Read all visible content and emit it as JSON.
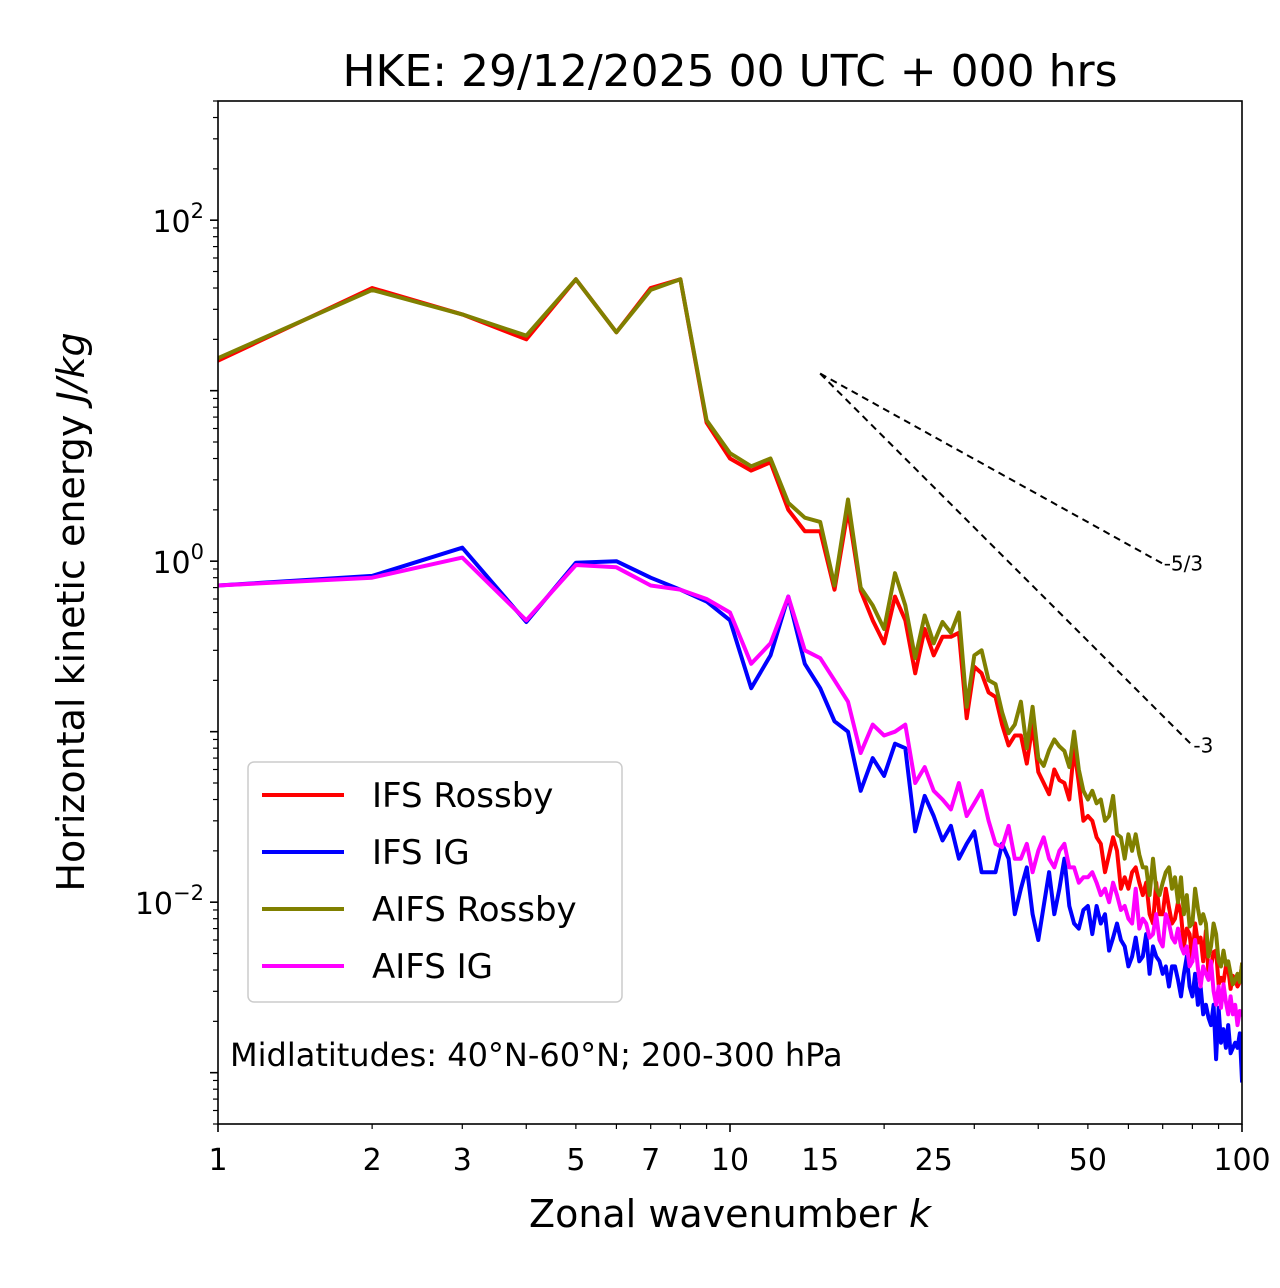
{
  "chart_data": {
    "type": "line",
    "title": "HKE: 29/12/2025 00 UTC + 000 hrs",
    "xlabel_text": "Zonal wavenumber ",
    "xlabel_italic": "k",
    "ylabel_text": "Horizontal kinetic energy ",
    "ylabel_italic": "J/kg",
    "xscale": "log",
    "yscale": "log",
    "xlim": [
      1,
      100
    ],
    "ylim": [
      0.0005,
      500
    ],
    "xticks": [
      {
        "value": 1,
        "label": "1"
      },
      {
        "value": 2,
        "label": "2"
      },
      {
        "value": 3,
        "label": "3"
      },
      {
        "value": 5,
        "label": "5"
      },
      {
        "value": 7,
        "label": "7"
      },
      {
        "value": 10,
        "label": "10"
      },
      {
        "value": 15,
        "label": "15"
      },
      {
        "value": 25,
        "label": "25"
      },
      {
        "value": 50,
        "label": "50"
      },
      {
        "value": 100,
        "label": "100"
      }
    ],
    "yticks": [
      {
        "value": 100,
        "base": "10",
        "exp": "2"
      },
      {
        "value": 1,
        "base": "10",
        "exp": "0"
      },
      {
        "value": 0.01,
        "base": "10",
        "exp": "−2"
      }
    ],
    "annotation": "Midlatitudes: 40°N-60°N; 200-300 hPa",
    "legend_position": "lower-left",
    "reference_slopes": [
      {
        "label": "-5/3",
        "slope": -1.6667,
        "x_start": 15,
        "x_end": 70,
        "y_start": 12.6
      },
      {
        "label": "-3",
        "slope": -3,
        "x_start": 15,
        "x_end": 80,
        "y_start": 12.6
      }
    ],
    "series": [
      {
        "name": "IFS Rossby",
        "color": "#ff0000",
        "x": [
          1,
          2,
          3,
          4,
          5,
          6,
          7,
          8,
          9,
          10,
          11,
          12,
          13,
          14,
          15,
          16,
          17,
          18,
          19,
          20,
          21,
          22,
          23,
          24,
          25,
          26,
          27,
          28,
          29,
          30,
          31,
          32,
          33,
          34,
          35,
          36,
          37,
          38,
          39,
          40,
          41,
          42,
          43,
          44,
          45,
          46,
          47,
          48,
          49,
          50,
          51,
          52,
          53,
          54,
          55,
          56,
          57,
          58,
          59,
          60,
          61,
          62,
          63,
          64,
          65,
          66,
          67,
          68,
          69,
          70,
          71,
          72,
          73,
          74,
          75,
          76,
          77,
          78,
          79,
          80,
          81,
          82,
          83,
          84,
          85,
          86,
          87,
          88,
          89,
          90,
          91,
          92,
          93,
          94,
          95,
          96,
          97,
          98,
          99,
          100
        ],
        "y": [
          15,
          40,
          28,
          20,
          45,
          22,
          40,
          45,
          6.5,
          4.0,
          3.4,
          3.8,
          2.0,
          1.5,
          1.5,
          0.68,
          2.0,
          0.67,
          0.45,
          0.33,
          0.62,
          0.45,
          0.22,
          0.4,
          0.28,
          0.36,
          0.36,
          0.38,
          0.12,
          0.24,
          0.22,
          0.17,
          0.16,
          0.11,
          0.083,
          0.095,
          0.095,
          0.065,
          0.11,
          0.058,
          0.05,
          0.043,
          0.06,
          0.052,
          0.05,
          0.04,
          0.08,
          0.05,
          0.03,
          0.032,
          0.03,
          0.024,
          0.022,
          0.015,
          0.019,
          0.024,
          0.02,
          0.012,
          0.014,
          0.012,
          0.015,
          0.016,
          0.013,
          0.011,
          0.013,
          0.0085,
          0.0075,
          0.013,
          0.0085,
          0.0085,
          0.012,
          0.0093,
          0.0075,
          0.008,
          0.01,
          0.0085,
          0.0055,
          0.007,
          0.0065,
          0.0045,
          0.0075,
          0.0058,
          0.0062,
          0.0045,
          0.0068,
          0.0038,
          0.0042,
          0.0051,
          0.0052,
          0.0033,
          0.0036,
          0.0034,
          0.0042,
          0.0041,
          0.0031,
          0.0037,
          0.0035,
          0.0032,
          0.0034,
          0.0043
        ]
      },
      {
        "name": "IFS IG",
        "color": "#0000ff",
        "x": [
          1,
          2,
          3,
          4,
          5,
          6,
          7,
          8,
          9,
          10,
          11,
          12,
          13,
          14,
          15,
          16,
          17,
          18,
          19,
          20,
          21,
          22,
          23,
          24,
          25,
          26,
          27,
          28,
          29,
          30,
          31,
          32,
          33,
          34,
          35,
          36,
          37,
          38,
          39,
          40,
          41,
          42,
          43,
          44,
          45,
          46,
          47,
          48,
          49,
          50,
          51,
          52,
          53,
          54,
          55,
          56,
          57,
          58,
          59,
          60,
          61,
          62,
          63,
          64,
          65,
          66,
          67,
          68,
          69,
          70,
          71,
          72,
          73,
          74,
          75,
          76,
          77,
          78,
          79,
          80,
          81,
          82,
          83,
          84,
          85,
          86,
          87,
          88,
          89,
          90,
          91,
          92,
          93,
          94,
          95,
          96,
          97,
          98,
          99,
          100
        ],
        "y": [
          0.72,
          0.82,
          1.2,
          0.44,
          0.98,
          1.0,
          0.8,
          0.68,
          0.58,
          0.45,
          0.18,
          0.28,
          0.62,
          0.25,
          0.18,
          0.115,
          0.1,
          0.045,
          0.07,
          0.055,
          0.085,
          0.08,
          0.026,
          0.042,
          0.032,
          0.023,
          0.028,
          0.018,
          0.022,
          0.026,
          0.015,
          0.015,
          0.015,
          0.022,
          0.018,
          0.0085,
          0.012,
          0.016,
          0.0085,
          0.006,
          0.0095,
          0.015,
          0.0085,
          0.012,
          0.018,
          0.0095,
          0.0075,
          0.007,
          0.009,
          0.0095,
          0.0065,
          0.0095,
          0.0075,
          0.0085,
          0.0052,
          0.0062,
          0.0075,
          0.006,
          0.0055,
          0.0042,
          0.0048,
          0.0062,
          0.0045,
          0.0048,
          0.0065,
          0.0038,
          0.0055,
          0.0048,
          0.0045,
          0.0038,
          0.0042,
          0.0032,
          0.0042,
          0.0042,
          0.0035,
          0.0028,
          0.0038,
          0.0048,
          0.0032,
          0.0028,
          0.0038,
          0.0025,
          0.0032,
          0.0022,
          0.0025,
          0.0021,
          0.0019,
          0.0025,
          0.0012,
          0.0024,
          0.0015,
          0.0018,
          0.0014,
          0.0019,
          0.0013,
          0.0014,
          0.0015,
          0.0014,
          0.0017,
          0.0009
        ]
      },
      {
        "name": "AIFS Rossby",
        "color": "#808000",
        "x": [
          1,
          2,
          3,
          4,
          5,
          6,
          7,
          8,
          9,
          10,
          11,
          12,
          13,
          14,
          15,
          16,
          17,
          18,
          19,
          20,
          21,
          22,
          23,
          24,
          25,
          26,
          27,
          28,
          29,
          30,
          31,
          32,
          33,
          34,
          35,
          36,
          37,
          38,
          39,
          40,
          41,
          42,
          43,
          44,
          45,
          46,
          47,
          48,
          49,
          50,
          51,
          52,
          53,
          54,
          55,
          56,
          57,
          58,
          59,
          60,
          61,
          62,
          63,
          64,
          65,
          66,
          67,
          68,
          69,
          70,
          71,
          72,
          73,
          74,
          75,
          76,
          77,
          78,
          79,
          80,
          81,
          82,
          83,
          84,
          85,
          86,
          87,
          88,
          89,
          90,
          91,
          92,
          93,
          94,
          95,
          96,
          97,
          98,
          99,
          100
        ],
        "y": [
          15.5,
          39,
          28,
          21,
          45,
          22,
          39,
          45,
          6.7,
          4.3,
          3.6,
          4.0,
          2.2,
          1.8,
          1.7,
          0.72,
          2.3,
          0.7,
          0.55,
          0.4,
          0.85,
          0.55,
          0.27,
          0.48,
          0.33,
          0.44,
          0.38,
          0.5,
          0.14,
          0.28,
          0.3,
          0.2,
          0.19,
          0.13,
          0.098,
          0.11,
          0.15,
          0.08,
          0.14,
          0.07,
          0.063,
          0.078,
          0.09,
          0.082,
          0.077,
          0.062,
          0.1,
          0.06,
          0.045,
          0.04,
          0.045,
          0.038,
          0.04,
          0.03,
          0.032,
          0.042,
          0.025,
          0.024,
          0.018,
          0.025,
          0.02,
          0.025,
          0.019,
          0.016,
          0.016,
          0.011,
          0.018,
          0.012,
          0.011,
          0.013,
          0.015,
          0.016,
          0.012,
          0.014,
          0.01,
          0.014,
          0.0085,
          0.011,
          0.0072,
          0.0075,
          0.012,
          0.0092,
          0.0075,
          0.0085,
          0.0075,
          0.0048,
          0.0055,
          0.0075,
          0.0065,
          0.0045,
          0.0042,
          0.0052,
          0.0043,
          0.0045,
          0.0038,
          0.0033,
          0.0035,
          0.0038,
          0.0034,
          0.0043
        ]
      },
      {
        "name": "AIFS IG",
        "color": "#ff00ff",
        "x": [
          1,
          2,
          3,
          4,
          5,
          6,
          7,
          8,
          9,
          10,
          11,
          12,
          13,
          14,
          15,
          16,
          17,
          18,
          19,
          20,
          21,
          22,
          23,
          24,
          25,
          26,
          27,
          28,
          29,
          30,
          31,
          32,
          33,
          34,
          35,
          36,
          37,
          38,
          39,
          40,
          41,
          42,
          43,
          44,
          45,
          46,
          47,
          48,
          49,
          50,
          51,
          52,
          53,
          54,
          55,
          56,
          57,
          58,
          59,
          60,
          61,
          62,
          63,
          64,
          65,
          66,
          67,
          68,
          69,
          70,
          71,
          72,
          73,
          74,
          75,
          76,
          77,
          78,
          79,
          80,
          81,
          82,
          83,
          84,
          85,
          86,
          87,
          88,
          89,
          90,
          91,
          92,
          93,
          94,
          95,
          96,
          97,
          98,
          99,
          100
        ],
        "y": [
          0.72,
          0.8,
          1.05,
          0.45,
          0.95,
          0.92,
          0.72,
          0.68,
          0.6,
          0.5,
          0.25,
          0.33,
          0.62,
          0.3,
          0.27,
          0.2,
          0.15,
          0.075,
          0.11,
          0.095,
          0.1,
          0.11,
          0.05,
          0.062,
          0.045,
          0.04,
          0.035,
          0.05,
          0.032,
          0.038,
          0.045,
          0.03,
          0.022,
          0.021,
          0.028,
          0.018,
          0.018,
          0.022,
          0.015,
          0.02,
          0.024,
          0.018,
          0.016,
          0.02,
          0.022,
          0.016,
          0.016,
          0.013,
          0.014,
          0.014,
          0.015,
          0.013,
          0.011,
          0.012,
          0.01,
          0.013,
          0.011,
          0.009,
          0.0095,
          0.008,
          0.0075,
          0.012,
          0.007,
          0.008,
          0.0075,
          0.0062,
          0.0065,
          0.0085,
          0.006,
          0.0055,
          0.0085,
          0.0075,
          0.0062,
          0.0058,
          0.007,
          0.0055,
          0.005,
          0.0055,
          0.0042,
          0.0045,
          0.006,
          0.0041,
          0.0032,
          0.0042,
          0.0038,
          0.0035,
          0.0045,
          0.003,
          0.0025,
          0.0032,
          0.0024,
          0.0033,
          0.0026,
          0.0022,
          0.0028,
          0.0022,
          0.0025,
          0.0019,
          0.0023,
          0.0022
        ]
      }
    ]
  }
}
